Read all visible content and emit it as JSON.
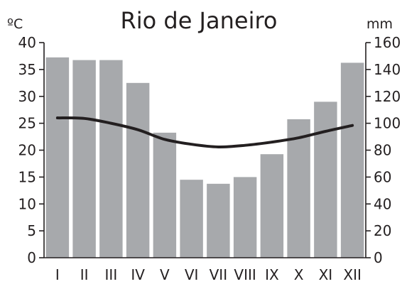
{
  "chart_data": {
    "type": "bar",
    "title": "Rio de Janeiro",
    "categories": [
      "I",
      "II",
      "III",
      "IV",
      "V",
      "VI",
      "VII",
      "VIII",
      "IX",
      "X",
      "XI",
      "XII"
    ],
    "ylabel_left": "ºC",
    "ylabel_right": "mm",
    "ylim_left": [
      0,
      40
    ],
    "ylim_right": [
      0,
      160
    ],
    "yticks_left": [
      "0",
      "5",
      "10",
      "15",
      "20",
      "25",
      "30",
      "35",
      "40"
    ],
    "yticks_right": [
      "0",
      "20",
      "40",
      "60",
      "80",
      "100",
      "120",
      "140",
      "160"
    ],
    "series": [
      {
        "type": "bar",
        "axis": "right",
        "color": "#a7a9ac",
        "values": [
          149,
          147,
          147,
          130,
          93,
          58,
          55,
          60,
          77,
          103,
          116,
          145
        ]
      },
      {
        "type": "line",
        "axis": "left",
        "color": "#231f20",
        "values": [
          26.0,
          25.9,
          25.0,
          23.8,
          22.0,
          21.1,
          20.6,
          20.9,
          21.5,
          22.3,
          23.5,
          24.6
        ]
      }
    ],
    "grid": false,
    "legend": "none"
  }
}
